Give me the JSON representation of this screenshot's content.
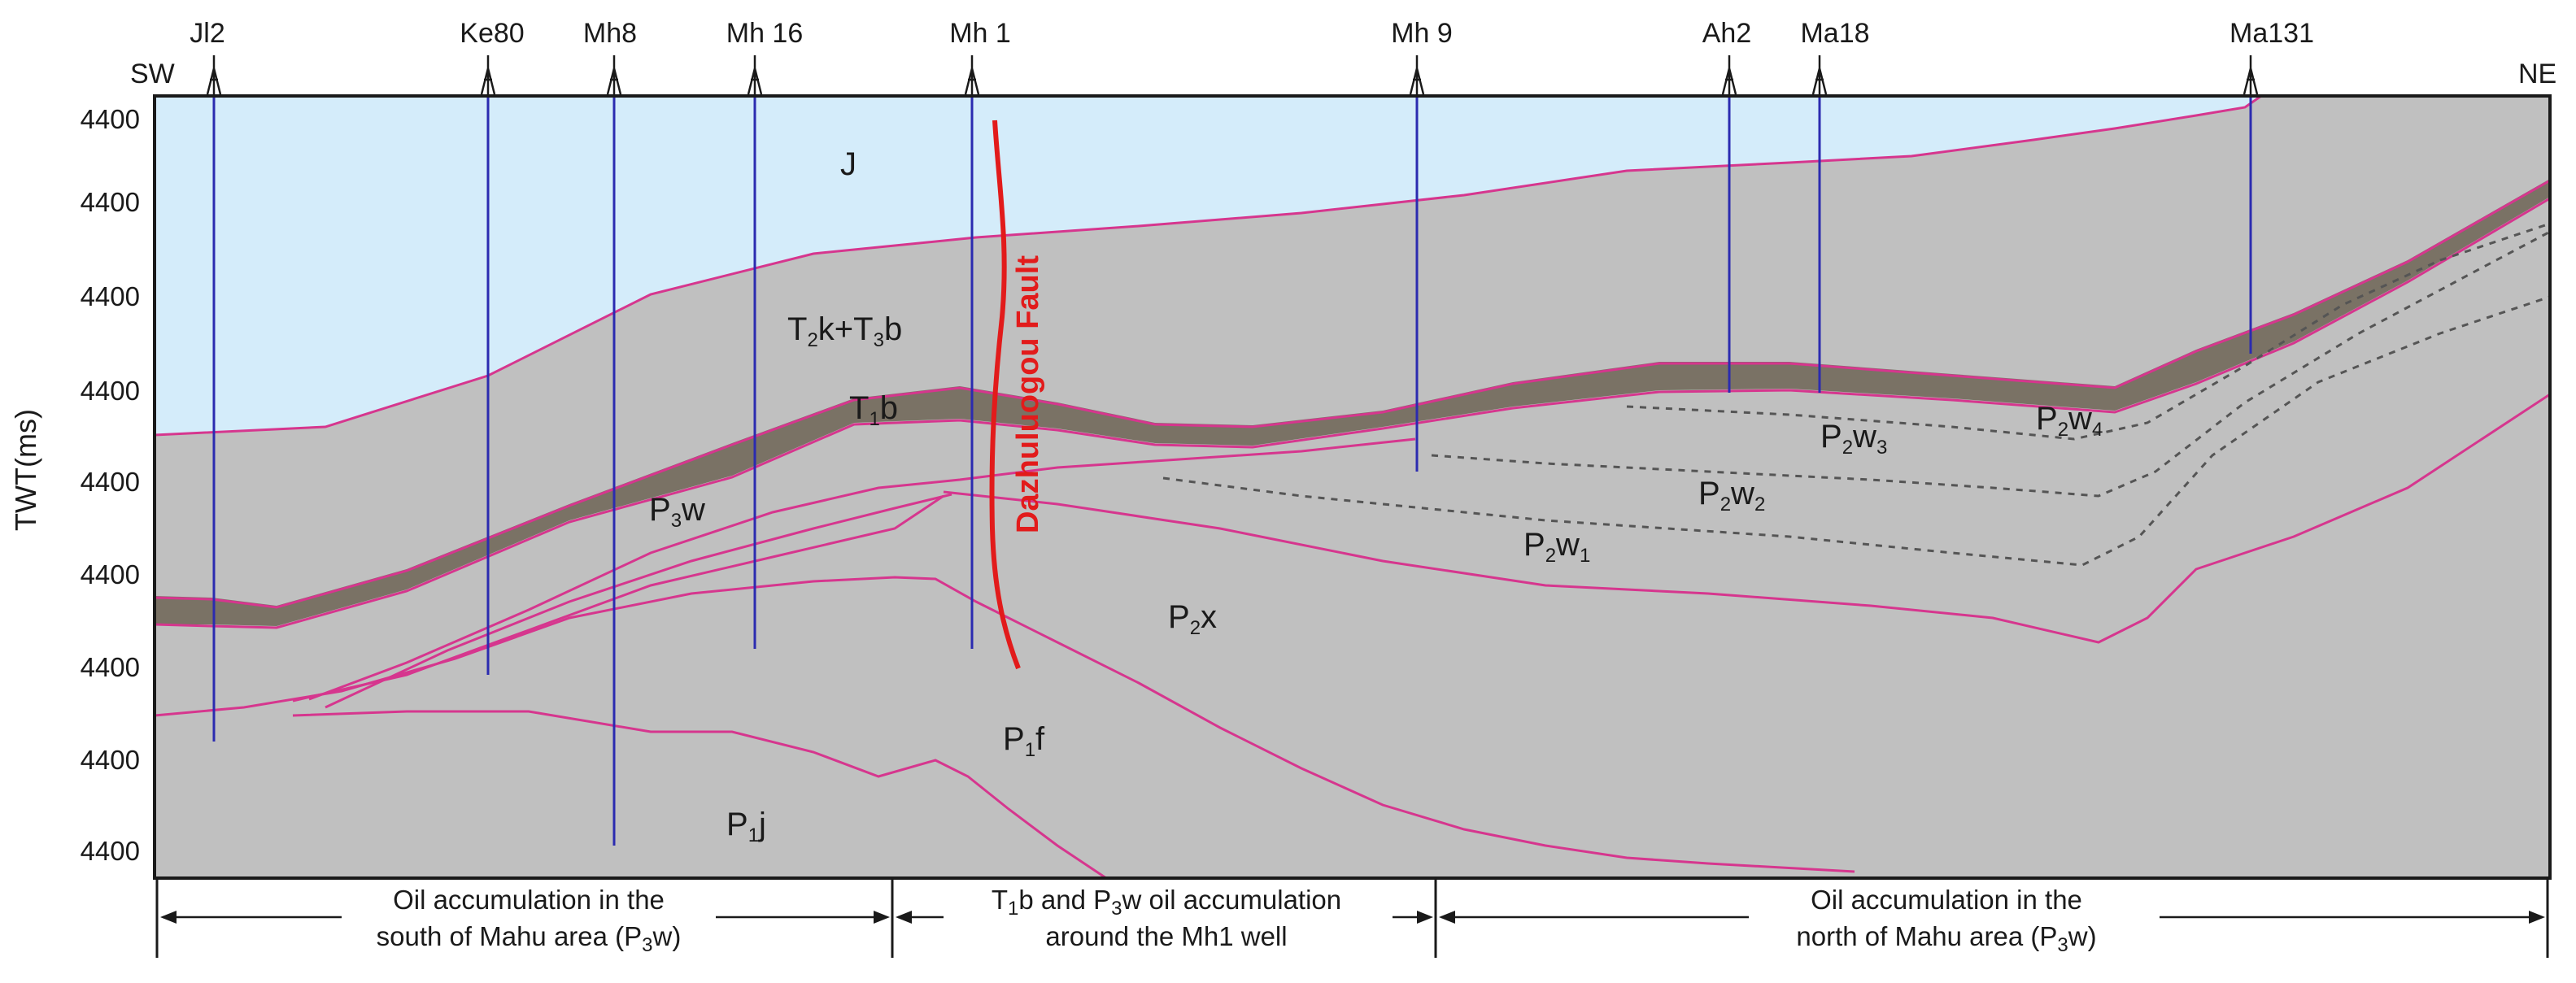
{
  "figure": {
    "direction_left": "SW",
    "direction_right": "NE",
    "y_axis_title": "TWT(ms)",
    "y_ticks": [
      "4400",
      "4400",
      "4400",
      "4400",
      "4400",
      "4400",
      "4400",
      "4400",
      "4400"
    ],
    "fault_label": "Dazhuluogou Fault"
  },
  "wells": [
    {
      "name": "Jl2"
    },
    {
      "name": "Ke80"
    },
    {
      "name": "Mh8"
    },
    {
      "name": "Mh 16"
    },
    {
      "name": "Mh 1"
    },
    {
      "name": "Mh 9"
    },
    {
      "name": "Ah2"
    },
    {
      "name": "Ma18"
    },
    {
      "name": "Ma131"
    }
  ],
  "units": {
    "J": {
      "main": "J"
    },
    "T2k_T3b": {
      "p1": "T",
      "s1": "2",
      "p2": "k+T",
      "s2": "3",
      "p3": "b"
    },
    "T1b": {
      "p1": "T",
      "s1": "1",
      "p2": "b"
    },
    "P3w": {
      "p1": "P",
      "s1": "3",
      "p2": "w"
    },
    "P2x": {
      "p1": "P",
      "s1": "2",
      "p2": "x"
    },
    "P1f": {
      "p1": "P",
      "s1": "1",
      "p2": "f"
    },
    "P1j": {
      "p1": "P",
      "s1": "1",
      "p2": "j"
    },
    "P2w1": {
      "p1": "P",
      "s1": "2",
      "p2": "w",
      "s2": "1"
    },
    "P2w2": {
      "p1": "P",
      "s1": "2",
      "p2": "w",
      "s2": "2"
    },
    "P2w3": {
      "p1": "P",
      "s1": "2",
      "p2": "w",
      "s2": "3"
    },
    "P2w4": {
      "p1": "P",
      "s1": "2",
      "p2": "w",
      "s2": "4"
    }
  },
  "areas": {
    "south": {
      "line1": "Oil accumulation in the",
      "line2a": "south of Mahu area (P",
      "line2s": "3",
      "line2b": "w)"
    },
    "middle": {
      "l1a": "T",
      "l1s1": "1",
      "l1b": "b and P",
      "l1s2": "3",
      "l1c": "w oil accumulation",
      "line2": "around the Mh1 well"
    },
    "north": {
      "line1": "Oil accumulation in the",
      "line2a": "north of Mahu area (P",
      "line2s": "3",
      "line2b": "w)"
    }
  },
  "colors": {
    "sky": "#d4ecfa",
    "strata": "#c0c0c0",
    "t1b_band": "#7a7265",
    "horizon": "#d6368e",
    "well": "#2b2bb0",
    "fault": "#e21b1b",
    "dashed": "#555555"
  }
}
